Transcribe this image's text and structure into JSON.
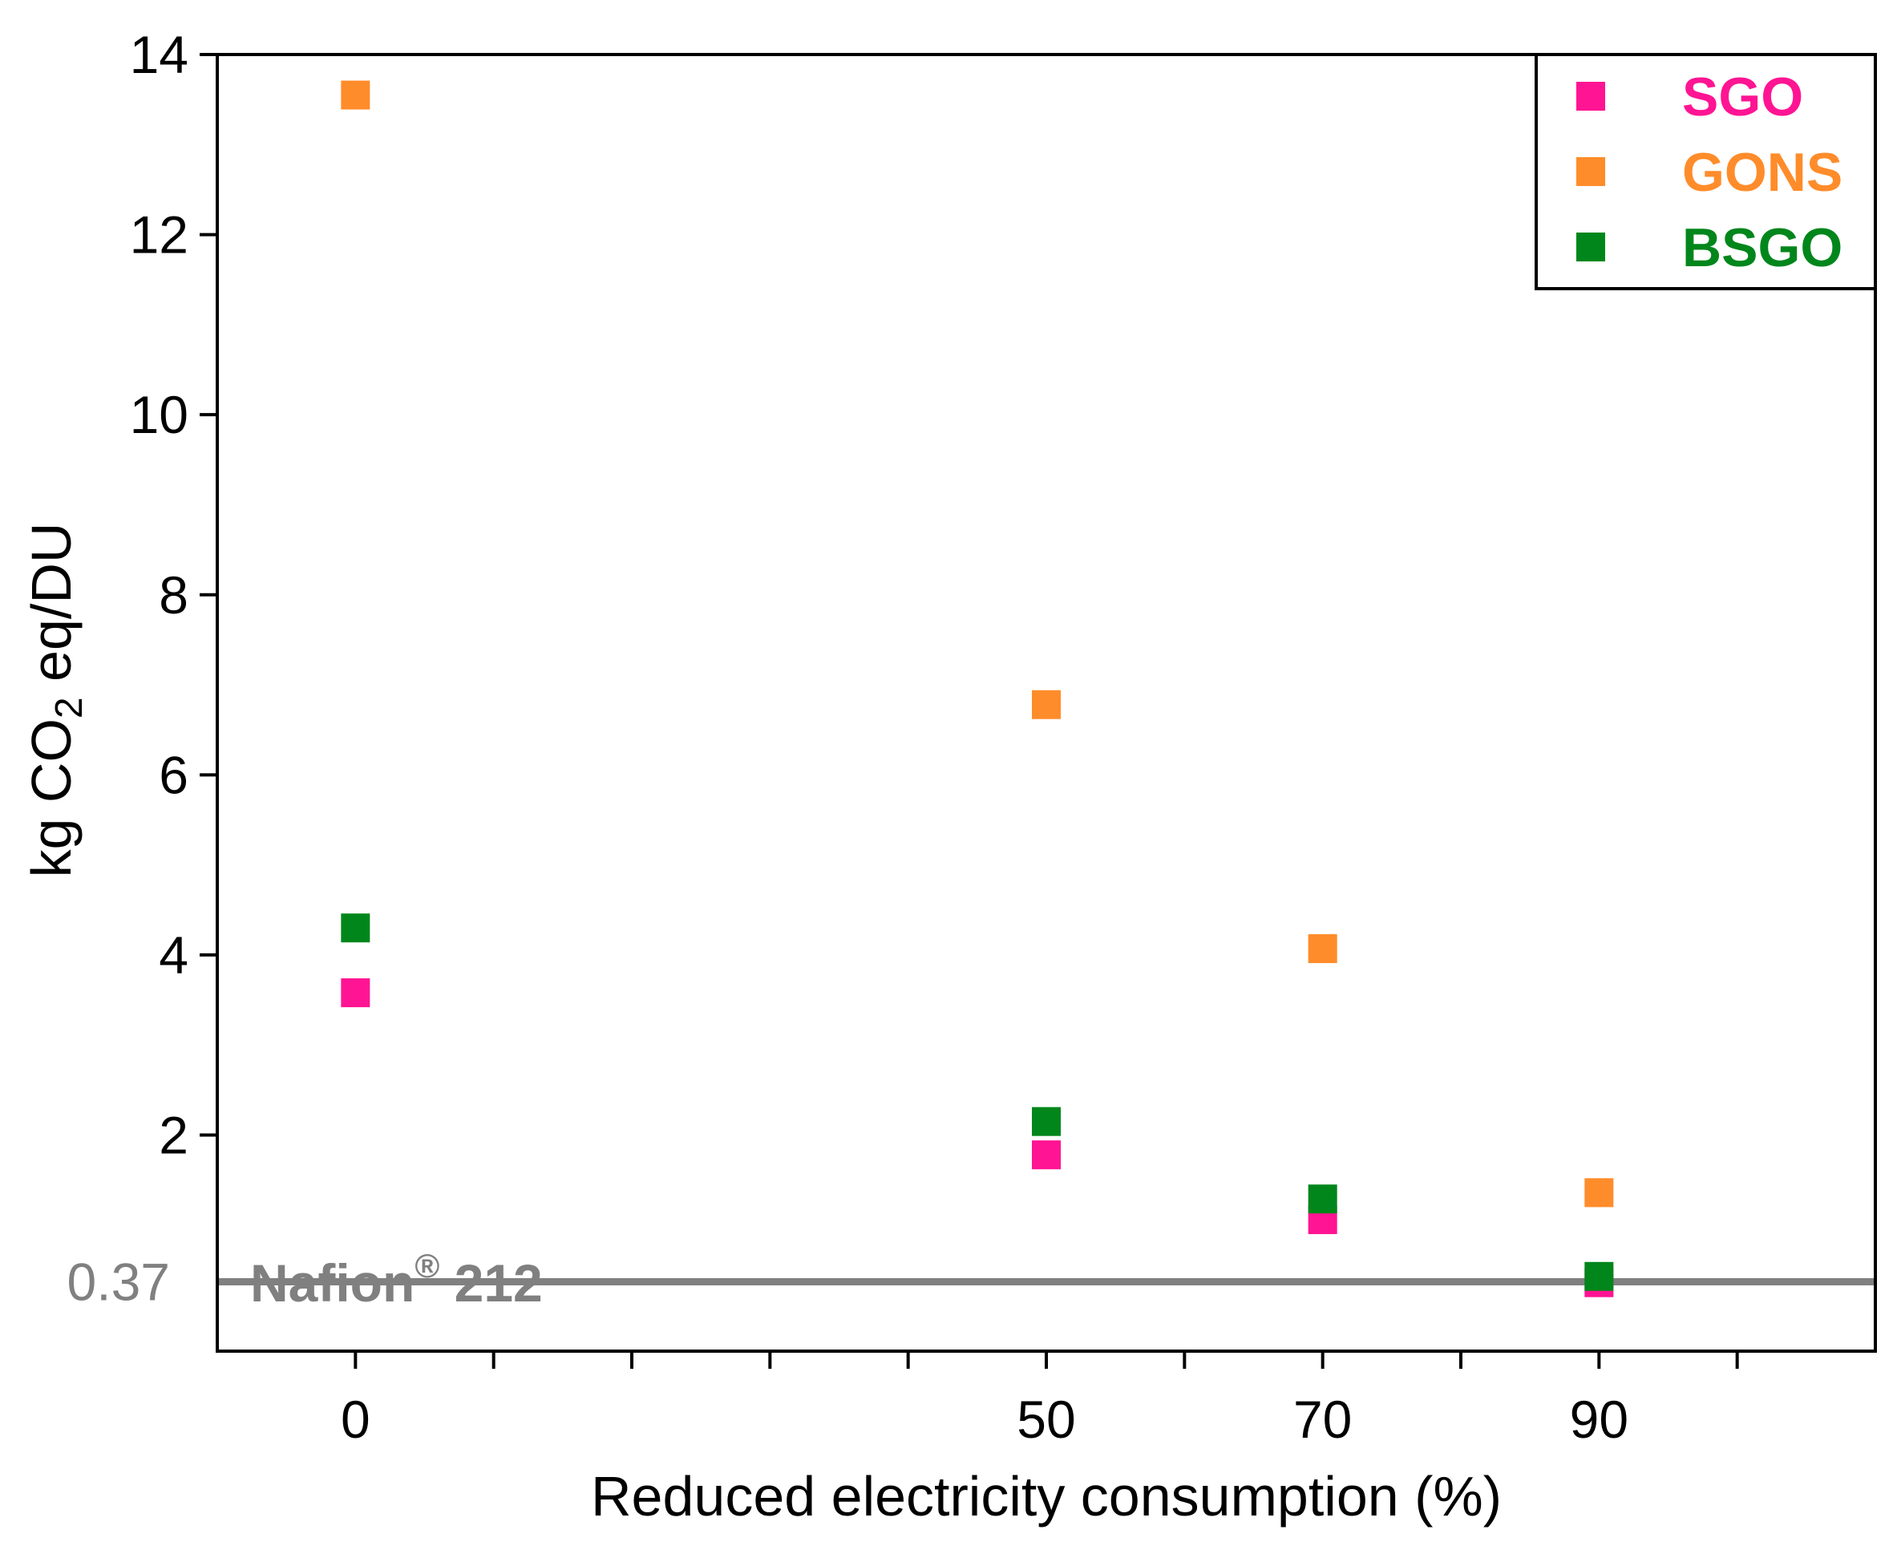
{
  "chart_data": {
    "type": "scatter",
    "xlabel": "Reduced electricity consumption (%)",
    "ylabel": {
      "prefix": "kg CO",
      "subscript": "2",
      "suffix": " eq/DU"
    },
    "xlim": [
      -10,
      110
    ],
    "ylim": [
      -0.4,
      14
    ],
    "x_ticks_labeled": [
      0,
      50,
      70,
      90
    ],
    "x_ticks_minor": [
      10,
      20,
      30,
      40,
      60,
      80,
      100
    ],
    "y_ticks": [
      2,
      4,
      6,
      8,
      10,
      12,
      14
    ],
    "series": [
      {
        "name": "SGO",
        "color": "#ff1493",
        "x": [
          0,
          50,
          70,
          90
        ],
        "y": [
          3.58,
          1.78,
          1.06,
          0.36
        ]
      },
      {
        "name": "GONS",
        "color": "#ff8c2a",
        "x": [
          0,
          50,
          70,
          90
        ],
        "y": [
          13.55,
          6.78,
          4.07,
          1.36
        ]
      },
      {
        "name": "BSGO",
        "color": "#00861b",
        "x": [
          0,
          50,
          70,
          90
        ],
        "y": [
          4.3,
          2.15,
          1.29,
          0.43
        ]
      }
    ],
    "reference_line": {
      "label_main": "Nafion",
      "label_sup": "®",
      "label_tail": " 212",
      "value": 0.37,
      "value_label": "0.37",
      "color": "#808080"
    },
    "legend_position": "top-right"
  }
}
